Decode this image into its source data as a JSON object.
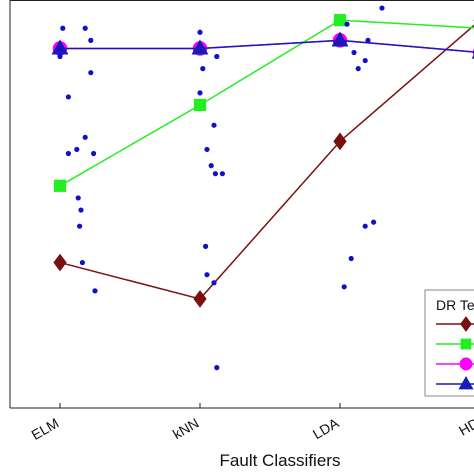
{
  "chart_data": {
    "type": "line",
    "xlabel": "Fault Classifiers",
    "ylabel": "",
    "categories": [
      "ELM",
      "kNN",
      "LDA",
      "HD"
    ],
    "ylim": [
      0,
      100
    ],
    "grid": false,
    "series": [
      {
        "name": "",
        "color": "#7a1010",
        "marker": "diamond",
        "values": [
          36,
          27,
          66,
          96
        ]
      },
      {
        "name": "",
        "color": "#22ee22",
        "marker": "square",
        "values": [
          55,
          75,
          96,
          94
        ]
      },
      {
        "name": "",
        "color": "#ff00ff",
        "marker": "circle",
        "values": [
          89,
          89,
          91,
          88
        ]
      },
      {
        "name": "",
        "color": "#1a1ab8",
        "marker": "triangle",
        "values": [
          89,
          89,
          91,
          88
        ]
      }
    ],
    "scatter_points": [
      {
        "x": 0,
        "y": 89
      },
      {
        "x": 0,
        "y": 87
      },
      {
        "x": 0.18,
        "y": 94
      },
      {
        "x": 0.22,
        "y": 91
      },
      {
        "x": 0.06,
        "y": 63
      },
      {
        "x": 0.12,
        "y": 64
      },
      {
        "x": 0.18,
        "y": 67
      },
      {
        "x": 0.24,
        "y": 63
      },
      {
        "x": 0.13,
        "y": 52
      },
      {
        "x": 0.15,
        "y": 49
      },
      {
        "x": 0.14,
        "y": 45
      },
      {
        "x": 0.16,
        "y": 36
      },
      {
        "x": 0.25,
        "y": 29
      },
      {
        "x": 0.02,
        "y": 94
      },
      {
        "x": 0.22,
        "y": 83
      },
      {
        "x": 0.06,
        "y": 77
      },
      {
        "x": 1.0,
        "y": 78
      },
      {
        "x": 1.02,
        "y": 84
      },
      {
        "x": 1.1,
        "y": 70
      },
      {
        "x": 1.05,
        "y": 64
      },
      {
        "x": 1.08,
        "y": 60
      },
      {
        "x": 1.11,
        "y": 58
      },
      {
        "x": 1.16,
        "y": 58
      },
      {
        "x": 1.04,
        "y": 40
      },
      {
        "x": 1.05,
        "y": 33
      },
      {
        "x": 1.1,
        "y": 31
      },
      {
        "x": 1.12,
        "y": 10
      },
      {
        "x": 1.0,
        "y": 93
      },
      {
        "x": 1.12,
        "y": 87
      },
      {
        "x": 2.05,
        "y": 95
      },
      {
        "x": 2.1,
        "y": 88
      },
      {
        "x": 2.13,
        "y": 84
      },
      {
        "x": 2.18,
        "y": 86
      },
      {
        "x": 2.3,
        "y": 99
      },
      {
        "x": 2.2,
        "y": 91
      },
      {
        "x": 2.18,
        "y": 45
      },
      {
        "x": 2.24,
        "y": 46
      },
      {
        "x": 2.08,
        "y": 37
      },
      {
        "x": 2.03,
        "y": 30
      }
    ],
    "legend": {
      "title": "DR Te",
      "position": "bottom-right"
    }
  }
}
